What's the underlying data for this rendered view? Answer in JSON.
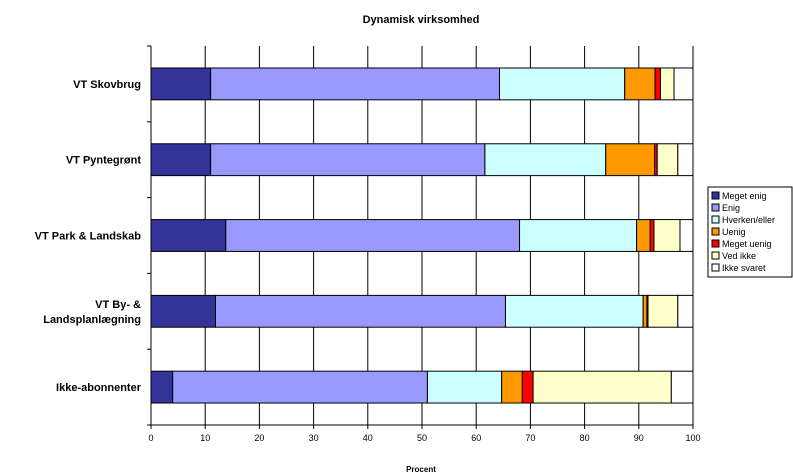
{
  "chart_data": {
    "type": "bar",
    "orientation": "horizontal",
    "stacked": true,
    "title": "Dynamisk virksomhed",
    "xlabel": "Procent",
    "ylabel": "",
    "xlim": [
      0,
      100
    ],
    "x_ticks": [
      "0",
      "10",
      "20",
      "30",
      "40",
      "50",
      "60",
      "70",
      "80",
      "90",
      "100"
    ],
    "grid": "vertical",
    "legend_position": "right",
    "categories": [
      [
        "VT Skovbrug"
      ],
      [
        "VT Pyntegrønt"
      ],
      [
        "VT Park & Landskab"
      ],
      [
        "VT By- &",
        "Landsplanlægning"
      ],
      [
        "Ikke-abonnenter"
      ]
    ],
    "series": [
      {
        "name": "Meget enig",
        "color": "#333399",
        "values": [
          11.0,
          11.0,
          13.8,
          11.9,
          4.0
        ]
      },
      {
        "name": "Enig",
        "color": "#9999ff",
        "values": [
          53.3,
          50.6,
          54.2,
          53.5,
          47.0
        ]
      },
      {
        "name": "Hverken/eller",
        "color": "#ccffff",
        "values": [
          23.1,
          22.3,
          21.6,
          25.4,
          13.7
        ]
      },
      {
        "name": "Uenig",
        "color": "#ff9900",
        "values": [
          5.6,
          9.0,
          2.5,
          0.7,
          3.8
        ]
      },
      {
        "name": "Meget uenig",
        "color": "#ff0000",
        "values": [
          1.0,
          0.5,
          0.7,
          0.2,
          2.0
        ]
      },
      {
        "name": "Ved ikke",
        "color": "#ffffcc",
        "values": [
          2.5,
          3.8,
          4.8,
          5.5,
          25.5
        ]
      },
      {
        "name": "Ikke svaret",
        "color": "#ffffff",
        "values": [
          3.5,
          2.8,
          2.4,
          2.8,
          4.0
        ]
      }
    ]
  }
}
